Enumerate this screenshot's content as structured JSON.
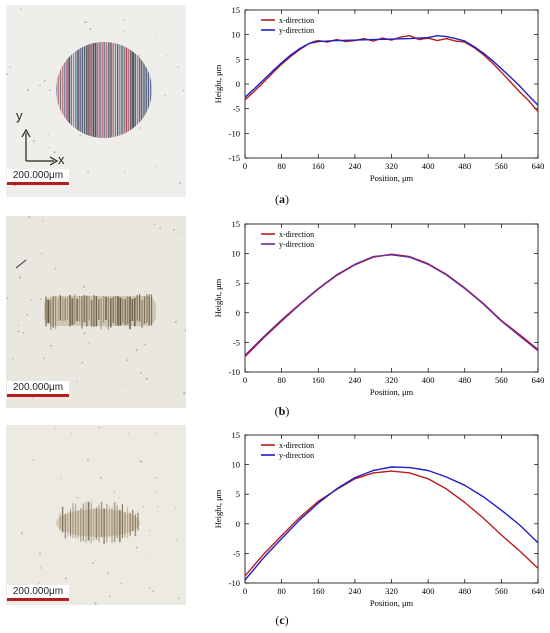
{
  "panels": [
    {
      "caption_open": "(",
      "caption_letter": "a",
      "caption_close": ")",
      "photo": {
        "scale_label": "200.000μm",
        "axis_y": "y",
        "axis_x": "x",
        "background": "#efeeea",
        "mark_color": "#3b3b48"
      },
      "chart_data": {
        "type": "line",
        "xlabel": "Position, μm",
        "ylabel": "Height, μm",
        "xlim": [
          0,
          640
        ],
        "ylim": [
          -15,
          15
        ],
        "xticks": [
          0,
          80,
          160,
          240,
          320,
          400,
          480,
          560,
          640
        ],
        "yticks": [
          -15,
          -10,
          -5,
          0,
          5,
          10,
          15
        ],
        "legend_position": "top-left",
        "series": [
          {
            "name": "x-direction",
            "color": "#b81e1e",
            "x": [
              0,
              20,
              40,
              60,
              80,
              100,
              120,
              140,
              150,
              160,
              180,
              200,
              220,
              240,
              260,
              280,
              300,
              320,
              340,
              360,
              380,
              400,
              420,
              440,
              460,
              480,
              500,
              520,
              540,
              560,
              580,
              600,
              620,
              640
            ],
            "y": [
              -3.2,
              -1.5,
              0.3,
              2.2,
              4.0,
              5.6,
              7.0,
              8.2,
              8.6,
              8.8,
              8.5,
              9.0,
              8.6,
              8.8,
              9.2,
              8.7,
              9.3,
              8.9,
              9.5,
              9.8,
              9.0,
              9.3,
              8.8,
              9.2,
              8.7,
              8.5,
              7.4,
              6.0,
              4.3,
              2.4,
              0.4,
              -1.6,
              -3.4,
              -5.6
            ]
          },
          {
            "name": "y-direction",
            "color": "#2020c8",
            "x": [
              0,
              20,
              40,
              60,
              80,
              100,
              120,
              140,
              160,
              180,
              200,
              240,
              280,
              320,
              360,
              400,
              420,
              440,
              460,
              480,
              500,
              520,
              540,
              560,
              580,
              600,
              620,
              640
            ],
            "y": [
              -2.7,
              -1.0,
              0.8,
              2.6,
              4.3,
              5.9,
              7.2,
              8.2,
              8.6,
              8.7,
              8.8,
              8.9,
              9.0,
              9.1,
              9.2,
              9.4,
              9.8,
              9.6,
              9.2,
              8.7,
              7.6,
              6.3,
              4.8,
              3.1,
              1.4,
              -0.4,
              -2.4,
              -4.3
            ]
          }
        ]
      }
    },
    {
      "caption_open": "(",
      "caption_letter": "b",
      "caption_close": ")",
      "photo": {
        "scale_label": "200.000μm",
        "axis_y": "",
        "axis_x": "",
        "background": "#e9e7df",
        "mark_color": "#5a4a33"
      },
      "chart_data": {
        "type": "line",
        "xlabel": "Position, μm",
        "ylabel": "Height, μm",
        "xlim": [
          0,
          640
        ],
        "ylim": [
          -10,
          15
        ],
        "xticks": [
          0,
          80,
          160,
          240,
          320,
          400,
          480,
          560,
          640
        ],
        "yticks": [
          -10,
          -5,
          0,
          5,
          10,
          15
        ],
        "legend_position": "top-left",
        "series": [
          {
            "name": "x-direction",
            "color": "#b81e1e",
            "x": [
              0,
              40,
              80,
              120,
              160,
              200,
              240,
              280,
              320,
              360,
              400,
              440,
              480,
              520,
              560,
              600,
              640
            ],
            "y": [
              -7.4,
              -4.3,
              -1.4,
              1.4,
              4.0,
              6.3,
              8.1,
              9.4,
              9.9,
              9.5,
              8.3,
              6.5,
              4.2,
              1.6,
              -1.3,
              -3.7,
              -6.2
            ]
          },
          {
            "name": "y-direction",
            "color": "#6a2aa8",
            "x": [
              0,
              40,
              80,
              120,
              160,
              200,
              240,
              280,
              320,
              360,
              400,
              440,
              480,
              520,
              560,
              600,
              640
            ],
            "y": [
              -7.2,
              -4.1,
              -1.2,
              1.5,
              4.1,
              6.4,
              8.2,
              9.5,
              9.8,
              9.4,
              8.2,
              6.4,
              4.1,
              1.5,
              -1.4,
              -3.9,
              -6.4
            ]
          }
        ]
      }
    },
    {
      "caption_open": "(",
      "caption_letter": "c",
      "caption_close": ")",
      "photo": {
        "scale_label": "200.000μm",
        "axis_y": "",
        "axis_x": "",
        "background": "#eceae3",
        "mark_color": "#6b5234"
      },
      "chart_data": {
        "type": "line",
        "xlabel": "Position, μm",
        "ylabel": "Height, μm",
        "xlim": [
          0,
          640
        ],
        "ylim": [
          -10,
          15
        ],
        "xticks": [
          0,
          80,
          160,
          240,
          320,
          400,
          480,
          560,
          640
        ],
        "yticks": [
          -10,
          -5,
          0,
          5,
          10,
          15
        ],
        "legend_position": "top-left",
        "series": [
          {
            "name": "x-direction",
            "color": "#b81e1e",
            "x": [
              0,
              40,
              80,
              120,
              160,
              200,
              240,
              280,
              320,
              360,
              400,
              440,
              480,
              520,
              560,
              600,
              640
            ],
            "y": [
              -8.8,
              -5.2,
              -2.0,
              1.1,
              3.8,
              5.8,
              7.6,
              8.6,
              8.9,
              8.6,
              7.6,
              5.9,
              3.6,
              1.0,
              -1.9,
              -4.6,
              -7.5
            ]
          },
          {
            "name": "y-direction",
            "color": "#2020c8",
            "x": [
              0,
              40,
              80,
              120,
              160,
              200,
              240,
              280,
              320,
              360,
              400,
              440,
              480,
              520,
              560,
              600,
              640
            ],
            "y": [
              -9.5,
              -5.8,
              -2.5,
              0.7,
              3.5,
              5.9,
              7.8,
              9.0,
              9.6,
              9.5,
              9.0,
              7.9,
              6.5,
              4.6,
              2.3,
              -0.2,
              -3.2
            ]
          }
        ]
      }
    }
  ]
}
